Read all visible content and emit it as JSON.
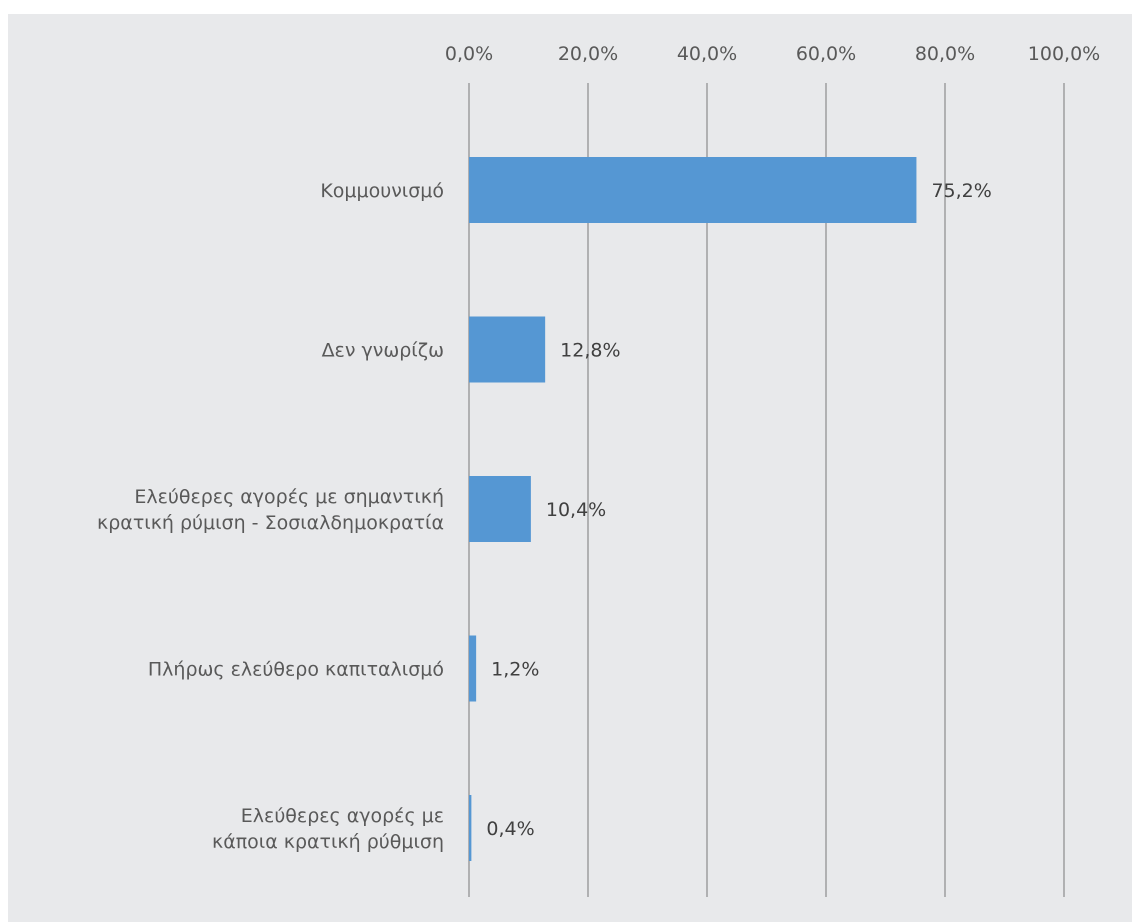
{
  "chart_data": {
    "type": "bar",
    "orientation": "horizontal",
    "categories": [
      [
        "Κομμουνισμό"
      ],
      [
        "Δεν γνωρίζω"
      ],
      [
        "Ελεύθερες αγορές με σημαντική",
        "κρατική ρύμιση - Σοσιαλδημοκρατία"
      ],
      [
        "Πλήρως ελεύθερο καπιταλισμό"
      ],
      [
        "Ελεύθερες αγορές με",
        "κάποια κρατική ρύθμιση"
      ]
    ],
    "values": [
      75.2,
      12.8,
      10.4,
      1.2,
      0.4
    ],
    "data_labels": [
      "75,2%",
      "12,8%",
      "10,4%",
      "1,2%",
      "0,4%"
    ],
    "xlim": [
      0,
      100
    ],
    "x_ticks": [
      "0,0%",
      "20,0%",
      "40,0%",
      "60,0%",
      "80,0%",
      "100,0%"
    ],
    "axis_position": "top",
    "grid": true,
    "legend": "none",
    "colors": {
      "bar": "#5597d3",
      "background": "#e8e9eb",
      "grid": "#8c8c8c",
      "text": "#595959"
    }
  }
}
